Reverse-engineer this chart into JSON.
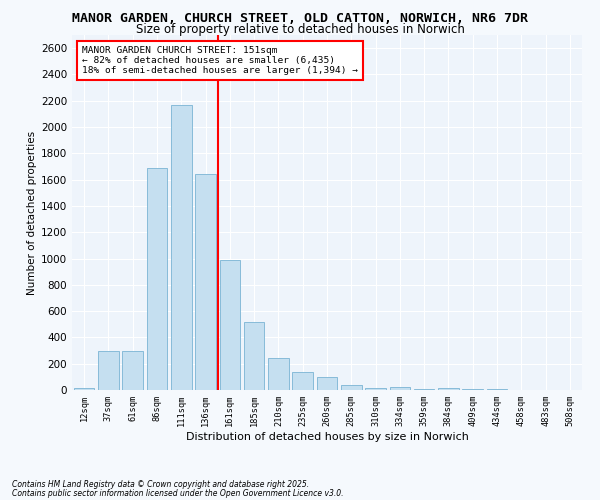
{
  "title_line1": "MANOR GARDEN, CHURCH STREET, OLD CATTON, NORWICH, NR6 7DR",
  "title_line2": "Size of property relative to detached houses in Norwich",
  "xlabel": "Distribution of detached houses by size in Norwich",
  "ylabel": "Number of detached properties",
  "categories": [
    "12sqm",
    "37sqm",
    "61sqm",
    "86sqm",
    "111sqm",
    "136sqm",
    "161sqm",
    "185sqm",
    "210sqm",
    "235sqm",
    "260sqm",
    "285sqm",
    "310sqm",
    "334sqm",
    "359sqm",
    "384sqm",
    "409sqm",
    "434sqm",
    "458sqm",
    "483sqm",
    "508sqm"
  ],
  "values": [
    15,
    300,
    300,
    1690,
    2170,
    1640,
    985,
    520,
    245,
    135,
    100,
    40,
    15,
    25,
    5,
    15,
    5,
    5,
    2,
    2,
    1
  ],
  "bar_color": "#c5dff0",
  "bar_edge_color": "#7ab4d4",
  "red_line_index": 6,
  "ylim": [
    0,
    2700
  ],
  "yticks": [
    0,
    200,
    400,
    600,
    800,
    1000,
    1200,
    1400,
    1600,
    1800,
    2000,
    2200,
    2400,
    2600
  ],
  "annotation_title": "MANOR GARDEN CHURCH STREET: 151sqm",
  "annotation_line1": "← 82% of detached houses are smaller (6,435)",
  "annotation_line2": "18% of semi-detached houses are larger (1,394) →",
  "footnote1": "Contains HM Land Registry data © Crown copyright and database right 2025.",
  "footnote2": "Contains public sector information licensed under the Open Government Licence v3.0.",
  "bg_color": "#eef4fb",
  "grid_color": "#ffffff",
  "fig_bg_color": "#f5f9fd"
}
